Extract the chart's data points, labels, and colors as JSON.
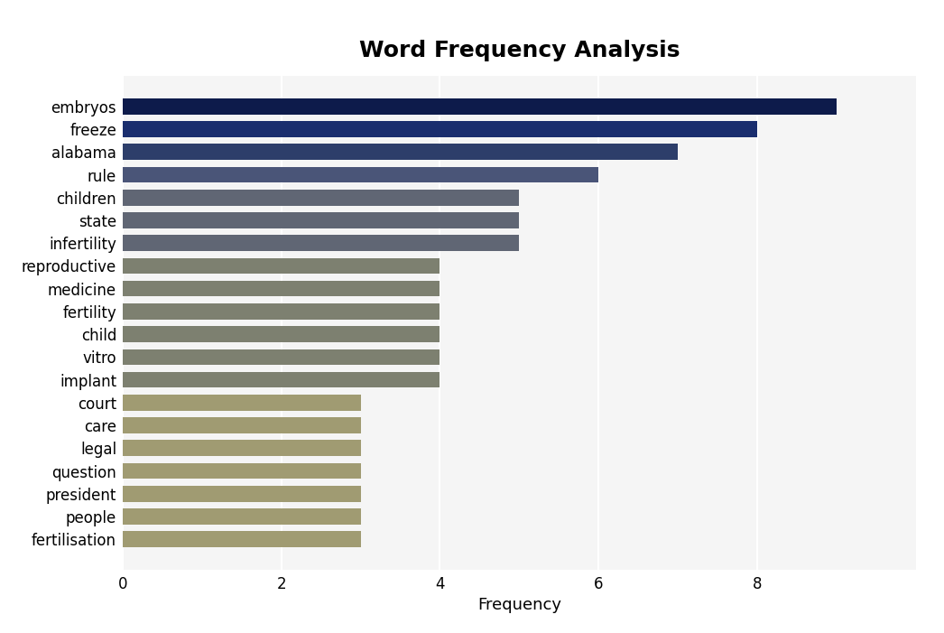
{
  "title": "Word Frequency Analysis",
  "categories": [
    "embryos",
    "freeze",
    "alabama",
    "rule",
    "children",
    "state",
    "infertility",
    "reproductive",
    "medicine",
    "fertility",
    "child",
    "vitro",
    "implant",
    "court",
    "care",
    "legal",
    "question",
    "president",
    "people",
    "fertilisation"
  ],
  "values": [
    9,
    8,
    7,
    6,
    5,
    5,
    5,
    4,
    4,
    4,
    4,
    4,
    4,
    3,
    3,
    3,
    3,
    3,
    3,
    3
  ],
  "bar_colors": [
    "#0d1b4b",
    "#1a2e6e",
    "#2d3e6a",
    "#4a5578",
    "#606674",
    "#606674",
    "#606674",
    "#7d8070",
    "#7d8070",
    "#7d8070",
    "#7d8070",
    "#7d8070",
    "#7d8070",
    "#a09b72",
    "#a09b72",
    "#a09b72",
    "#a09b72",
    "#a09b72",
    "#a09b72",
    "#a09b72"
  ],
  "xlabel": "Frequency",
  "ylabel": "",
  "xlim": [
    0,
    10
  ],
  "xticks": [
    0,
    2,
    4,
    6,
    8
  ],
  "fig_bg": "#ffffff",
  "plot_bg": "#f5f5f5",
  "title_fontsize": 18,
  "axis_fontsize": 13,
  "tick_fontsize": 12,
  "bar_height": 0.7
}
